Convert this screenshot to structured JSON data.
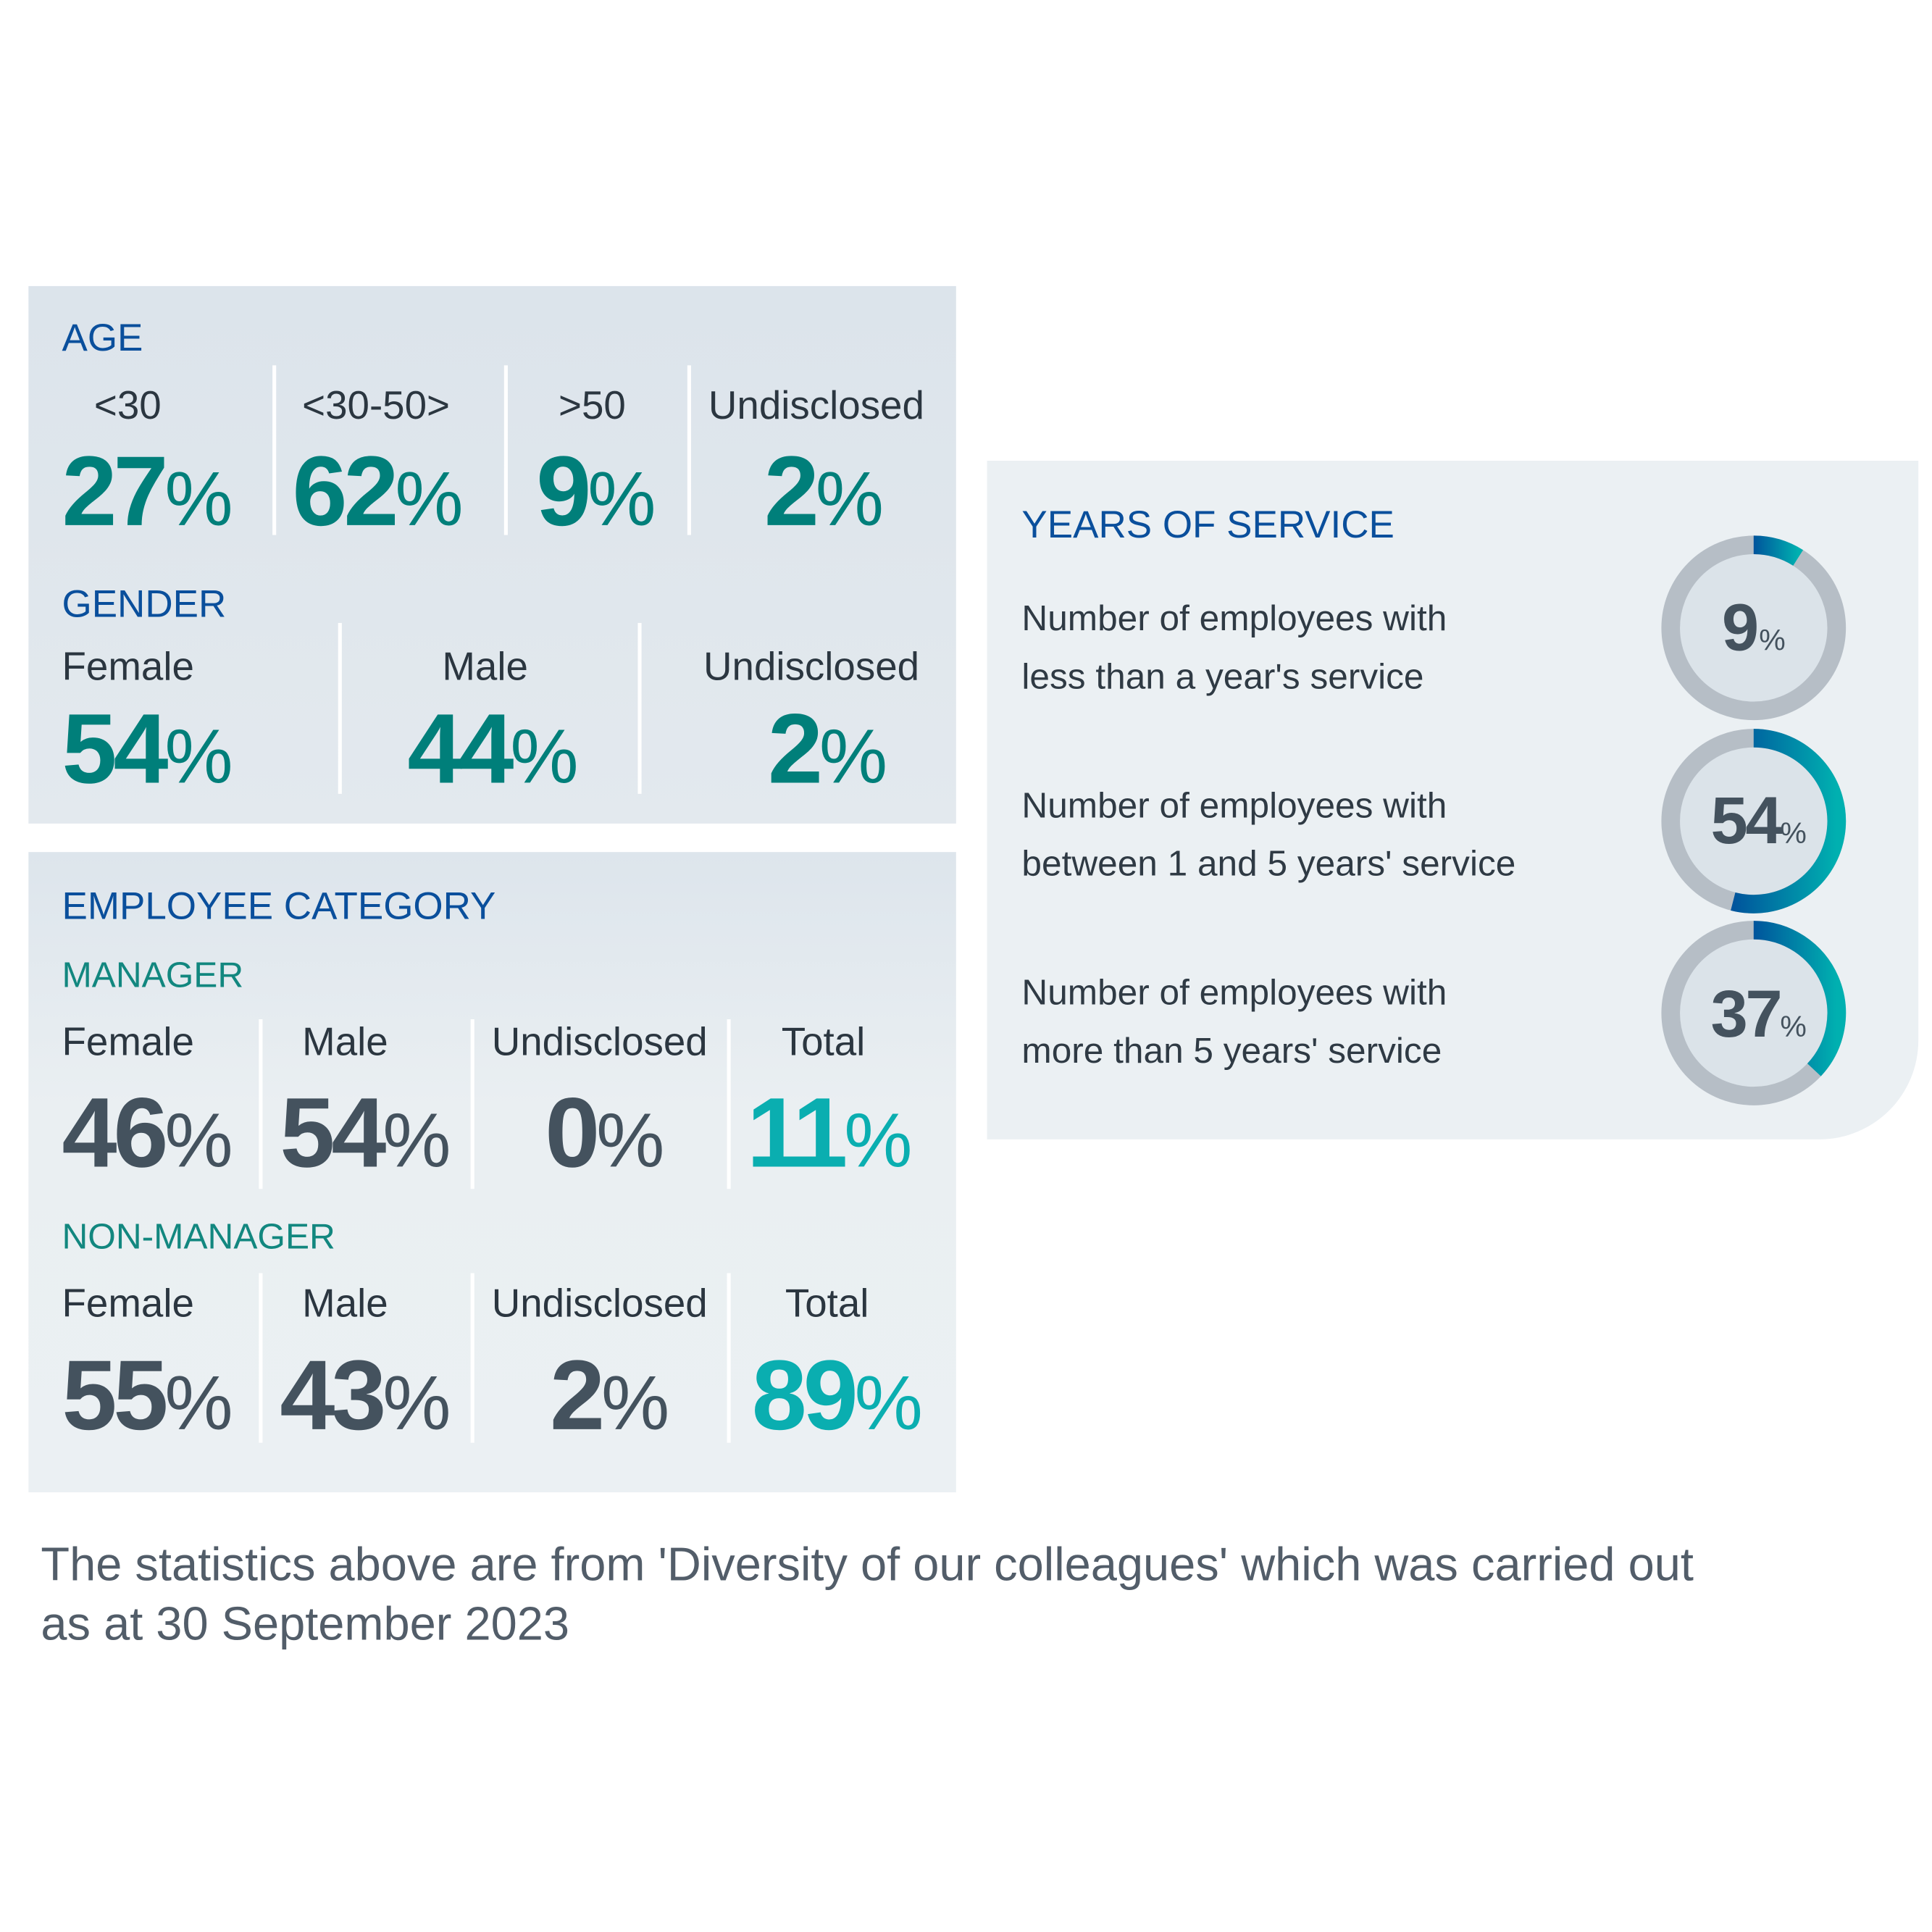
{
  "age": {
    "heading": "AGE",
    "items": [
      {
        "label": "<30",
        "value": "27",
        "unit": "%"
      },
      {
        "label": "<30-50>",
        "value": "62",
        "unit": "%"
      },
      {
        "label": ">50",
        "value": "9",
        "unit": "%"
      },
      {
        "label": "Undisclosed",
        "value": "2",
        "unit": "%"
      }
    ]
  },
  "gender": {
    "heading": "GENDER",
    "items": [
      {
        "label": "Female",
        "value": "54",
        "unit": "%"
      },
      {
        "label": "Male",
        "value": "44",
        "unit": "%"
      },
      {
        "label": "Undisclosed",
        "value": "2",
        "unit": "%"
      }
    ]
  },
  "employee_category": {
    "heading": "EMPLOYEE CATEGORY",
    "manager": {
      "heading": "MANAGER",
      "items": [
        {
          "label": "Female",
          "value": "46",
          "unit": "%"
        },
        {
          "label": "Male",
          "value": "54",
          "unit": "%"
        },
        {
          "label": "Undisclosed",
          "value": "0",
          "unit": "%"
        },
        {
          "label": "Total",
          "value": "11",
          "unit": "%"
        }
      ]
    },
    "non_manager": {
      "heading": "NON-MANAGER",
      "items": [
        {
          "label": "Female",
          "value": "55",
          "unit": "%"
        },
        {
          "label": "Male",
          "value": "43",
          "unit": "%"
        },
        {
          "label": "Undisclosed",
          "value": "2",
          "unit": "%"
        },
        {
          "label": "Total",
          "value": "89",
          "unit": "%"
        }
      ]
    }
  },
  "years_of_service": {
    "heading": "YEARS OF SERVICE",
    "items": [
      {
        "line1": "Number of employees with",
        "line2": "less than a year's service",
        "value": 9,
        "value_text": "9",
        "unit": "%"
      },
      {
        "line1": "Number of employees with",
        "line2": "between 1 and 5 years' service",
        "value": 54,
        "value_text": "54",
        "unit": "%"
      },
      {
        "line1": "Number of employees with",
        "line2": "more than 5 years' service",
        "value": 37,
        "value_text": "37",
        "unit": "%"
      }
    ]
  },
  "footer": {
    "line1": "The statistics above are from 'Diversity of our colleagues' which was carried out",
    "line2": "as at 30 September 2023"
  },
  "colors": {
    "heading_blue": "#0a4f9c",
    "teal": "#007f7a",
    "dark_value": "#44525e",
    "total_cyan": "#0aaeb0",
    "ring_track": "#b6bec6",
    "ring_gradient_start": "#00549c",
    "ring_gradient_end": "#00b0b0"
  }
}
